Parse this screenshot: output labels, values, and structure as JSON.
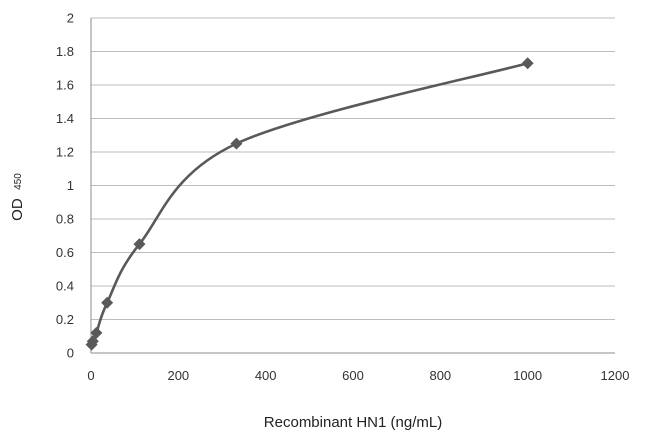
{
  "chart_data": {
    "type": "scatter",
    "title": "",
    "xlabel": "Recombinant HN1 (ng/mL)",
    "ylabel": "OD",
    "ylabel_subscript": "450",
    "xlim": [
      0,
      1200
    ],
    "ylim": [
      0,
      2
    ],
    "x_ticks": [
      "0",
      "200",
      "400",
      "600",
      "800",
      "1000",
      "1200"
    ],
    "y_ticks": [
      "0",
      "0.2",
      "0.4",
      "0.6",
      "0.8",
      "1",
      "1.2",
      "1.4",
      "1.6",
      "1.8",
      "2"
    ],
    "grid": "horizontal",
    "legend": "none",
    "marker": "diamond",
    "smoothed_line": true,
    "series_color": "#595959",
    "series": [
      {
        "x": [
          1.37,
          4.1,
          12.3,
          37,
          111,
          333,
          1000
        ],
        "y": [
          0.05,
          0.07,
          0.12,
          0.3,
          0.65,
          1.25,
          1.73
        ]
      }
    ]
  }
}
